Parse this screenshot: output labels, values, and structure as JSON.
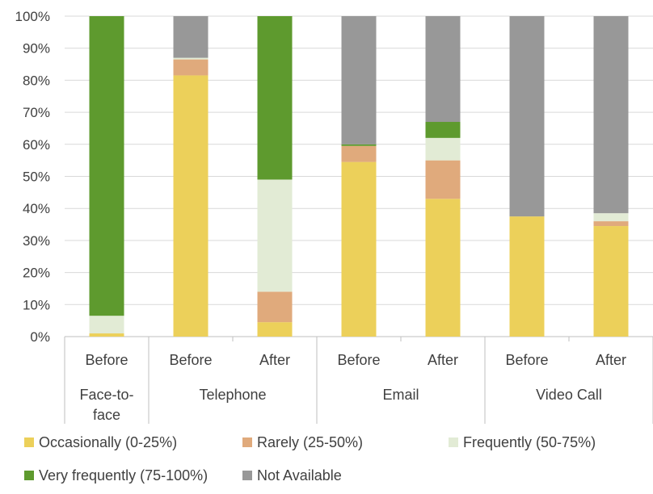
{
  "chart_data": {
    "type": "bar",
    "stacked": true,
    "percent_stacked": true,
    "title": "",
    "xlabel": "",
    "ylabel": "",
    "ylim": [
      0,
      100
    ],
    "y_ticks": [
      "0%",
      "10%",
      "20%",
      "30%",
      "40%",
      "50%",
      "60%",
      "70%",
      "80%",
      "90%",
      "100%"
    ],
    "grid": true,
    "legend_position": "bottom",
    "groups": [
      {
        "label": "Face-to-face",
        "label_lines": [
          "Face-to-",
          "face"
        ],
        "bars": [
          "Before"
        ]
      },
      {
        "label": "Telephone",
        "label_lines": [
          "Telephone"
        ],
        "bars": [
          "Before",
          "After"
        ]
      },
      {
        "label": "Email",
        "label_lines": [
          "Email"
        ],
        "bars": [
          "Before",
          "After"
        ]
      },
      {
        "label": "Video Call",
        "label_lines": [
          "Video Call"
        ],
        "bars": [
          "Before",
          "After"
        ]
      }
    ],
    "categories": [
      "Face-to-face Before",
      "Telephone Before",
      "Telephone After",
      "Email Before",
      "Email After",
      "Video Call Before",
      "Video Call After"
    ],
    "series": [
      {
        "name": "Occasionally (0-25%)",
        "color": "#ecd05a",
        "values": [
          1,
          81.5,
          4.5,
          54.5,
          43,
          37.5,
          34.5
        ]
      },
      {
        "name": "Rarely (25-50%)",
        "color": "#e0aa7c",
        "values": [
          0,
          5,
          9.5,
          5,
          12,
          0,
          1.5
        ]
      },
      {
        "name": "Frequently (50-75%)",
        "color": "#e2ebd5",
        "values": [
          5.5,
          0.5,
          35,
          0,
          7,
          0,
          2.5
        ]
      },
      {
        "name": "Very frequently (75-100%)",
        "color": "#5e9a2e",
        "values": [
          93.5,
          0,
          51,
          0.5,
          5,
          0,
          0
        ]
      },
      {
        "name": "Not Available",
        "color": "#989898",
        "values": [
          0,
          13,
          0,
          40,
          33,
          62.5,
          61.5
        ]
      }
    ]
  }
}
